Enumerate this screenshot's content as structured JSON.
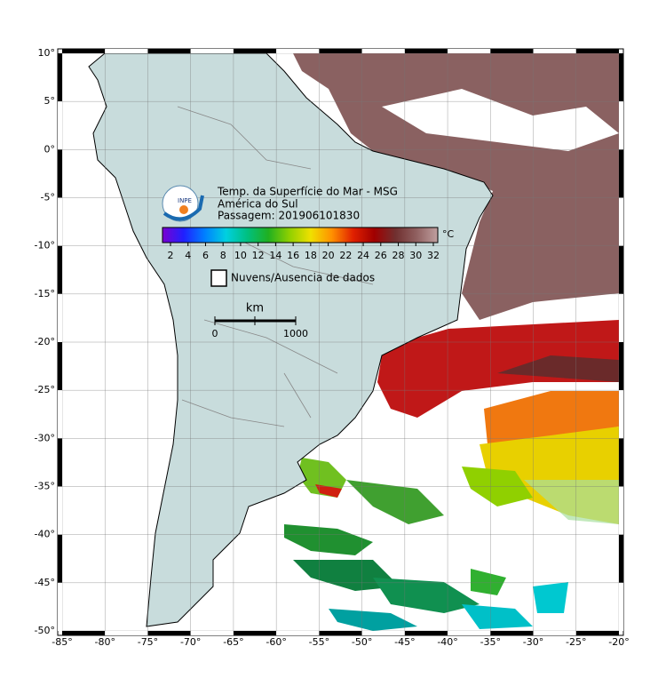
{
  "header": {
    "logo_text": "INPE",
    "title": "Temp. da Superfície do Mar - MSG",
    "region": "América do Sul",
    "pass": "Passagem: 201906101830"
  },
  "colorbar": {
    "unit": "°C",
    "ticks": [
      2,
      4,
      6,
      8,
      10,
      12,
      14,
      16,
      18,
      20,
      22,
      24,
      26,
      28,
      30,
      32
    ],
    "colors": [
      "#7a00d0",
      "#2020ff",
      "#0080ff",
      "#00d0e0",
      "#00c080",
      "#20b020",
      "#90d000",
      "#f0e000",
      "#ff9000",
      "#e02000",
      "#a00000",
      "#703030",
      "#906060",
      "#c0a0a0"
    ]
  },
  "legend": {
    "no_data": "Nuvens/Ausencia de dados"
  },
  "scale": {
    "unit": "km",
    "start": "0",
    "end": "1000"
  },
  "lat_ticks": [
    {
      "value": 10,
      "label": "10°"
    },
    {
      "value": 5,
      "label": "5°"
    },
    {
      "value": 0,
      "label": "0°"
    },
    {
      "value": -5,
      "label": "-5°"
    },
    {
      "value": -10,
      "label": "-10°"
    },
    {
      "value": -15,
      "label": "-15°"
    },
    {
      "value": -20,
      "label": "-20°"
    },
    {
      "value": -25,
      "label": "-25°"
    },
    {
      "value": -30,
      "label": "-30°"
    },
    {
      "value": -35,
      "label": "-35°"
    },
    {
      "value": -40,
      "label": "-40°"
    },
    {
      "value": -45,
      "label": "-45°"
    },
    {
      "value": -50,
      "label": "-50°"
    }
  ],
  "lon_ticks": [
    {
      "value": -85,
      "label": "-85°"
    },
    {
      "value": -80,
      "label": "-80°"
    },
    {
      "value": -75,
      "label": "-75°"
    },
    {
      "value": -70,
      "label": "-70°"
    },
    {
      "value": -65,
      "label": "-65°"
    },
    {
      "value": -60,
      "label": "-60°"
    },
    {
      "value": -55,
      "label": "-55°"
    },
    {
      "value": -50,
      "label": "-50°"
    },
    {
      "value": -45,
      "label": "-45°"
    },
    {
      "value": -40,
      "label": "-40°"
    },
    {
      "value": -35,
      "label": "-35°"
    },
    {
      "value": -30,
      "label": "-30°"
    },
    {
      "value": -25,
      "label": "-25°"
    },
    {
      "value": -20,
      "label": "-20°"
    }
  ]
}
